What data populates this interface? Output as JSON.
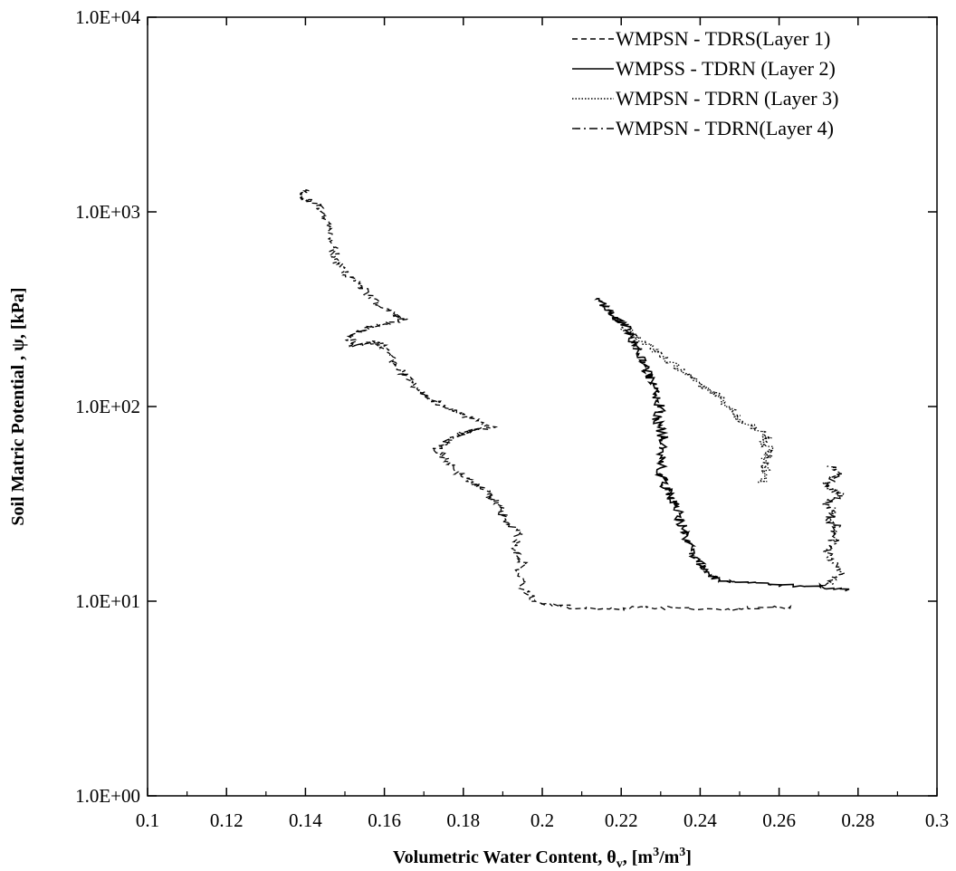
{
  "chart_data": {
    "type": "line",
    "title": "",
    "xlabel": "Volumetric Water Content, θv, [m³/m³]",
    "xlabel_parts": {
      "main": "Volumetric Water Content, θ",
      "sub": "v",
      "tail": ", [m",
      "sup1": "3",
      "mid": "/m",
      "sup2": "3",
      "end": "]"
    },
    "ylabel": "Soil Matric Potential , ψ, [kPa]",
    "xlim": [
      0.1,
      0.3
    ],
    "ylim": [
      1,
      10000
    ],
    "yscale": "log",
    "grid": false,
    "legend_position": "top-right",
    "x_ticks": [
      0.1,
      0.12,
      0.14,
      0.16,
      0.18,
      0.2,
      0.22,
      0.24,
      0.26,
      0.28,
      0.3
    ],
    "x_tick_labels": [
      "0.1",
      "0.12",
      "0.14",
      "0.16",
      "0.18",
      "0.2",
      "0.22",
      "0.24",
      "0.26",
      "0.28",
      "0.3"
    ],
    "y_ticks": [
      1,
      10,
      100,
      1000,
      10000
    ],
    "y_tick_labels": [
      "1.0E+00",
      "1.0E+01",
      "1.0E+02",
      "1.0E+03",
      "1.0E+04"
    ],
    "series": [
      {
        "name": "WMPSN - TDRS(Layer 1)",
        "style": "dashed",
        "x": [
          0.264,
          0.255,
          0.245,
          0.235,
          0.225,
          0.215,
          0.205,
          0.199,
          0.196,
          0.194,
          0.195,
          0.193,
          0.194,
          0.19,
          0.19,
          0.188,
          0.186,
          0.183,
          0.18,
          0.177,
          0.175,
          0.173,
          0.175,
          0.178,
          0.18,
          0.182,
          0.187,
          0.183,
          0.179,
          0.175,
          0.172,
          0.17,
          0.168,
          0.166,
          0.164,
          0.162,
          0.16,
          0.158,
          0.155,
          0.152,
          0.151,
          0.153,
          0.156,
          0.16,
          0.165,
          0.162,
          0.158,
          0.155,
          0.152,
          0.15,
          0.148,
          0.147,
          0.146,
          0.145,
          0.143,
          0.14,
          0.138,
          0.14
        ],
        "y": [
          9.2,
          9.3,
          9.0,
          9.2,
          9.3,
          9.1,
          9.4,
          9.8,
          11,
          14,
          16,
          19,
          23,
          26,
          30,
          33,
          36,
          40,
          44,
          50,
          55,
          60,
          65,
          70,
          73,
          76,
          78,
          85,
          92,
          100,
          108,
          118,
          128,
          140,
          155,
          175,
          200,
          215,
          210,
          205,
          220,
          240,
          255,
          265,
          280,
          300,
          340,
          400,
          450,
          500,
          560,
          650,
          800,
          950,
          1100,
          1150,
          1200,
          1300
        ]
      },
      {
        "name": "WMPSS - TDRN (Layer 2)",
        "style": "solid",
        "x": [
          0.278,
          0.27,
          0.26,
          0.25,
          0.244,
          0.242,
          0.24,
          0.238,
          0.237,
          0.236,
          0.235,
          0.234,
          0.233,
          0.232,
          0.231,
          0.23,
          0.23,
          0.231,
          0.23,
          0.229,
          0.23,
          0.229,
          0.228,
          0.227,
          0.226,
          0.225,
          0.224,
          0.223,
          0.222,
          0.221,
          0.219,
          0.218,
          0.216,
          0.214
        ],
        "y": [
          11.5,
          12,
          12,
          12.5,
          13,
          14,
          15.5,
          17.5,
          20,
          23,
          26,
          30,
          33,
          36,
          40,
          45,
          55,
          65,
          75,
          85,
          100,
          115,
          130,
          145,
          160,
          180,
          200,
          220,
          240,
          260,
          280,
          300,
          330,
          360
        ]
      },
      {
        "name": "WMPSN - TDRN (Layer 3)",
        "style": "dotted",
        "x": [
          0.256,
          0.257,
          0.256,
          0.257,
          0.258,
          0.256,
          0.257,
          0.255,
          0.252,
          0.25,
          0.248,
          0.246,
          0.244,
          0.241,
          0.238,
          0.235,
          0.232,
          0.229,
          0.226,
          0.223,
          0.22
        ],
        "y": [
          40,
          45,
          50,
          55,
          60,
          65,
          70,
          75,
          80,
          85,
          95,
          105,
          115,
          125,
          140,
          155,
          170,
          190,
          210,
          235,
          260
        ]
      },
      {
        "name": "WMPSN - TDRN(Layer 4)",
        "style": "dash-dot",
        "x": [
          0.272,
          0.274,
          0.276,
          0.273,
          0.272,
          0.274,
          0.273,
          0.275,
          0.272,
          0.274,
          0.273,
          0.272,
          0.274,
          0.276,
          0.273,
          0.272,
          0.274,
          0.275,
          0.273
        ],
        "y": [
          12,
          13,
          14,
          16,
          18,
          20,
          22,
          24,
          26,
          28,
          30,
          32,
          34,
          36,
          38,
          40,
          43,
          46,
          50
        ]
      }
    ]
  }
}
